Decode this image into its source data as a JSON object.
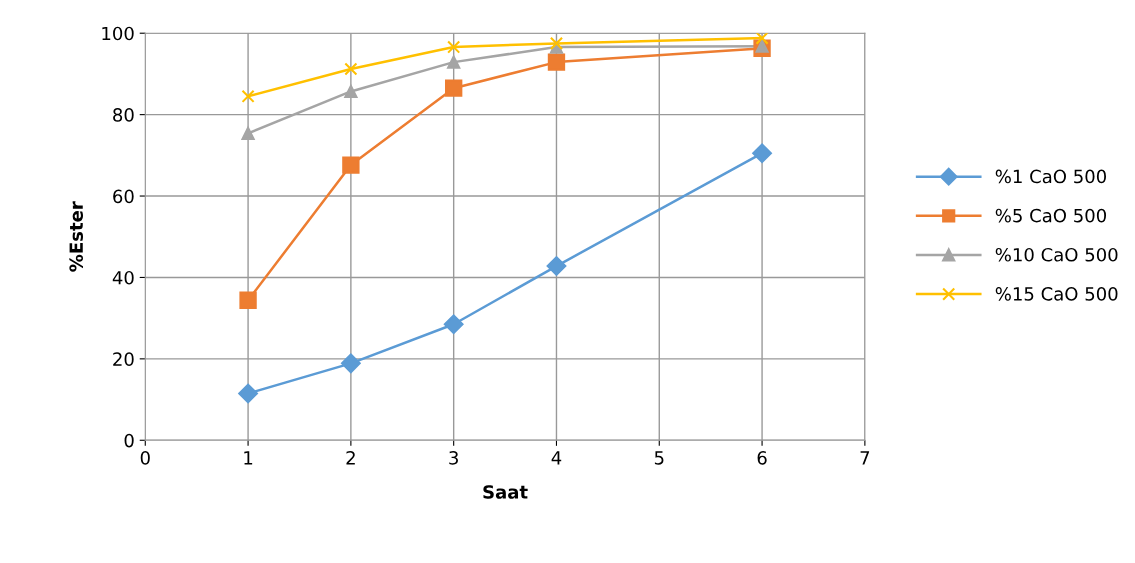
{
  "chart_data": {
    "type": "line",
    "xlabel": "Saat",
    "ylabel": "%Ester",
    "xlim": [
      0,
      7
    ],
    "xticks": [
      0,
      1,
      2,
      3,
      4,
      5,
      6,
      7
    ],
    "ylim": [
      0,
      100
    ],
    "yticks": [
      0,
      20,
      40,
      60,
      80,
      100
    ],
    "grid": true,
    "legend": "right",
    "line_style": "solid",
    "series": [
      {
        "name": "%1 CaO 500",
        "color": "#5b9bd5",
        "marker": "diamond",
        "x": [
          1,
          2,
          3,
          4,
          6
        ],
        "values": [
          11.5,
          18.9,
          28.5,
          42.8,
          70.5
        ]
      },
      {
        "name": "%5 CaO 500",
        "color": "#ed7d31",
        "marker": "square",
        "x": [
          1,
          2,
          3,
          4,
          6
        ],
        "values": [
          34.4,
          67.6,
          86.5,
          92.9,
          96.3
        ]
      },
      {
        "name": "%10 CaO 500",
        "color": "#a5a5a5",
        "marker": "triangle",
        "x": [
          1,
          2,
          3,
          4,
          6
        ],
        "values": [
          75.4,
          85.7,
          92.9,
          96.6,
          96.8
        ]
      },
      {
        "name": "%15 CaO 500",
        "color": "#ffc000",
        "marker": "cross",
        "x": [
          1,
          2,
          3,
          4,
          6
        ],
        "values": [
          84.5,
          91.2,
          96.6,
          97.5,
          98.8
        ]
      }
    ]
  }
}
